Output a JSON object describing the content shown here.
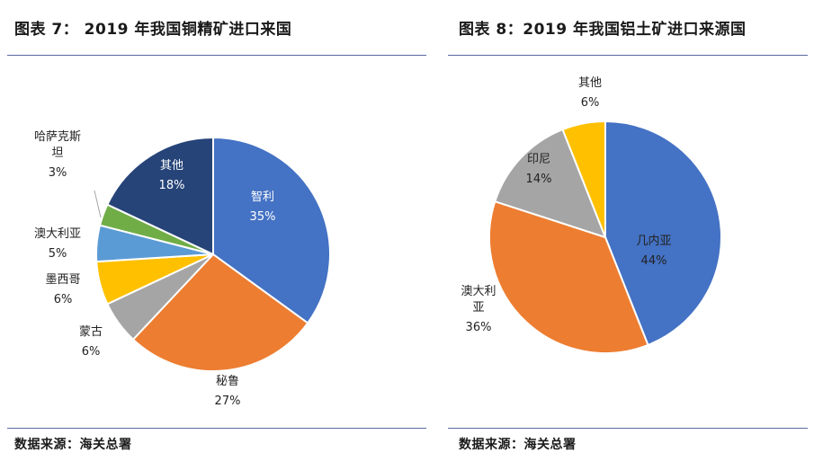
{
  "figures": [
    {
      "title": "图表 7： 2019 年我国铜精矿进口来国",
      "source": "数据来源：海关总署"
    },
    {
      "title": "图表 8：2019 年我国铝土矿进口来源国",
      "source": "数据来源：海关总署"
    }
  ],
  "chart_data": [
    {
      "type": "pie",
      "title": "图表 7： 2019 年我国铜精矿进口来国",
      "slices": [
        {
          "label": "智利",
          "value": 35,
          "value_label": "35%",
          "color": "#4472C4"
        },
        {
          "label": "秘鲁",
          "value": 27,
          "value_label": "27%",
          "color": "#ED7D31"
        },
        {
          "label": "蒙古",
          "value": 6,
          "value_label": "6%",
          "color": "#A5A5A5"
        },
        {
          "label": "墨西哥",
          "value": 6,
          "value_label": "6%",
          "color": "#FFC000"
        },
        {
          "label": "澳大利亚",
          "value": 5,
          "value_label": "5%",
          "color": "#5B9BD5"
        },
        {
          "label": "哈萨克斯坦",
          "value": 3,
          "value_label": "3%",
          "color": "#70AD47"
        },
        {
          "label": "其他",
          "value": 18,
          "value_label": "18%",
          "color": "#264478"
        }
      ]
    },
    {
      "type": "pie",
      "title": "图表 8：2019 年我国铝土矿进口来源国",
      "slices": [
        {
          "label": "几内亚",
          "value": 44,
          "value_label": "44%",
          "color": "#4472C4"
        },
        {
          "label": "澳大利亚",
          "value": 36,
          "value_label": "36%",
          "color": "#ED7D31"
        },
        {
          "label": "印尼",
          "value": 14,
          "value_label": "14%",
          "color": "#A5A5A5"
        },
        {
          "label": "其他",
          "value": 6,
          "value_label": "6%",
          "color": "#FFC000"
        }
      ]
    }
  ]
}
